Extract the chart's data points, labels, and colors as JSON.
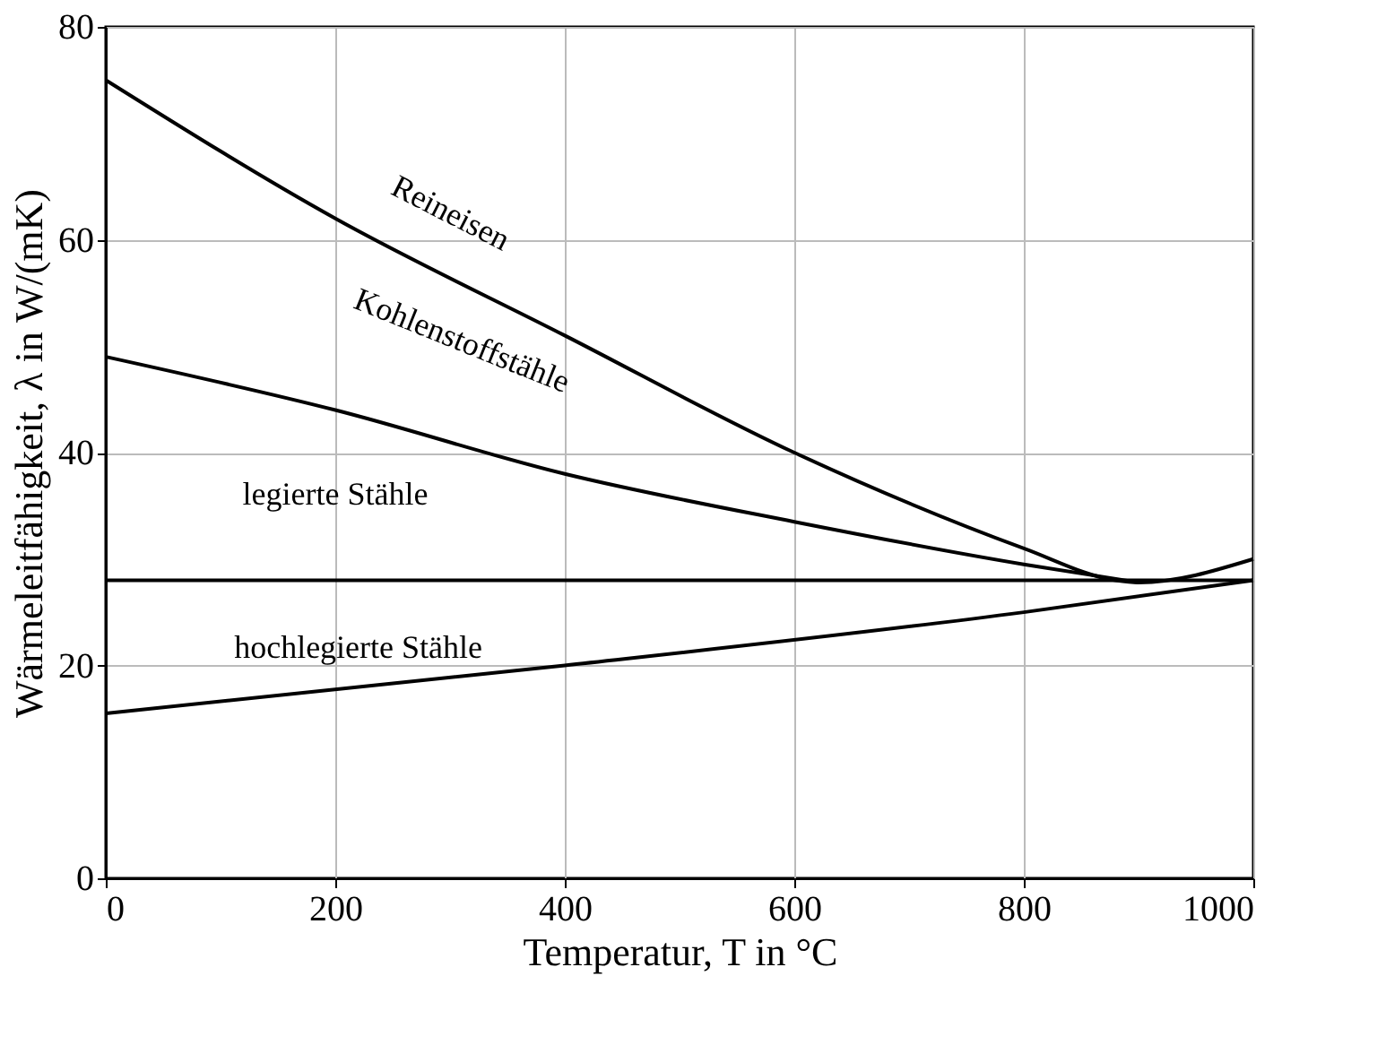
{
  "chart_data": {
    "type": "line",
    "xlabel": "Temperatur, T in °C",
    "ylabel": "Wärmeleitfähigkeit, λ in W/(mK)",
    "xlim": [
      0,
      1000
    ],
    "ylim": [
      0,
      80
    ],
    "xticks": [
      0,
      200,
      400,
      600,
      800,
      1000
    ],
    "yticks": [
      0,
      20,
      40,
      60,
      80
    ],
    "grid": true,
    "marker": "none",
    "line_style": "solid",
    "series": [
      {
        "color": "#000000",
        "x": [
          0,
          200,
          400,
          600,
          800,
          880,
          900,
          1000
        ],
        "values": [
          75,
          62,
          51,
          40,
          31,
          28,
          27.8,
          30
        ]
      },
      {
        "color": "#000000",
        "x": [
          0,
          200,
          400,
          600,
          800,
          900
        ],
        "values": [
          49,
          44,
          38,
          33.5,
          29.5,
          27.8
        ]
      },
      {
        "color": "#000000",
        "x": [
          0,
          1000
        ],
        "values": [
          28,
          28
        ]
      },
      {
        "color": "#000000",
        "x": [
          0,
          400,
          800,
          1000
        ],
        "values": [
          15.5,
          20,
          25,
          28
        ]
      }
    ],
    "annotations": [
      "Reineisen",
      "Kohlenstoffstähle",
      "legierte Stähle",
      "hochlegierte Stähle"
    ]
  }
}
